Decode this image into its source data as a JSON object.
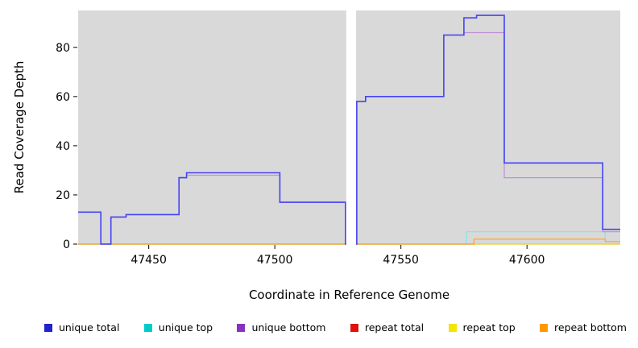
{
  "figure": {
    "bg_color": "#ffffff",
    "panel_color": "#d9d9d9",
    "axis_color": "#000000"
  },
  "chart_data": {
    "type": "line",
    "style": "step",
    "title": "",
    "xlabel": "Coordinate in Reference Genome",
    "ylabel": "Read Coverage Depth",
    "xlim": [
      47422,
      47637
    ],
    "ylim": [
      0,
      95
    ],
    "x_ticks": [
      "47450",
      "47500",
      "47550",
      "47600"
    ],
    "y_ticks": [
      "0",
      "20",
      "40",
      "60",
      "80"
    ],
    "gap_region": [
      47528,
      47532.5
    ],
    "legend_position": "bottom",
    "grid": false,
    "draw_order": [
      3,
      4,
      1,
      5,
      2,
      0
    ],
    "series": [
      {
        "name": "unique total",
        "legend_color": "#2222cc",
        "line_color": "#4343f5",
        "line_width": 1.6,
        "points": [
          [
            47422,
            13
          ],
          [
            47431,
            0
          ],
          [
            47435,
            11
          ],
          [
            47441,
            12
          ],
          [
            47462,
            27
          ],
          [
            47465,
            29
          ],
          [
            47502,
            17
          ],
          [
            47528,
            0
          ],
          [
            47532.5,
            58
          ],
          [
            47536,
            60
          ],
          [
            47567,
            85
          ],
          [
            47575,
            92
          ],
          [
            47580,
            93
          ],
          [
            47591,
            33
          ],
          [
            47630,
            6
          ]
        ]
      },
      {
        "name": "unique top",
        "legend_color": "#00cccc",
        "line_color": "#7fe5e5",
        "line_width": 1.2,
        "points": [
          [
            47422,
            0
          ],
          [
            47576,
            5
          ],
          [
            47631,
            1
          ]
        ]
      },
      {
        "name": "unique bottom",
        "legend_color": "#8833bb",
        "line_color": "#c08fd6",
        "line_width": 1.2,
        "points": [
          [
            47422,
            13
          ],
          [
            47431,
            0
          ],
          [
            47435,
            11
          ],
          [
            47441,
            12
          ],
          [
            47462,
            27
          ],
          [
            47465,
            28
          ],
          [
            47502,
            17
          ],
          [
            47528,
            0
          ],
          [
            47532.5,
            58
          ],
          [
            47536,
            60
          ],
          [
            47567,
            85
          ],
          [
            47575,
            86
          ],
          [
            47591,
            27
          ],
          [
            47630,
            5
          ]
        ]
      },
      {
        "name": "repeat total",
        "legend_color": "#dd1111",
        "line_color": "#e03030",
        "line_width": 1.2,
        "points": [
          [
            47422,
            0
          ]
        ]
      },
      {
        "name": "repeat top",
        "legend_color": "#f5e500",
        "line_color": "#eaea40",
        "line_width": 1.2,
        "points": [
          [
            47422,
            0
          ]
        ]
      },
      {
        "name": "repeat bottom",
        "legend_color": "#ff9900",
        "line_color": "#ffa733",
        "line_width": 1.2,
        "points": [
          [
            47422,
            0
          ],
          [
            47579,
            2
          ],
          [
            47631,
            1
          ]
        ]
      }
    ]
  }
}
